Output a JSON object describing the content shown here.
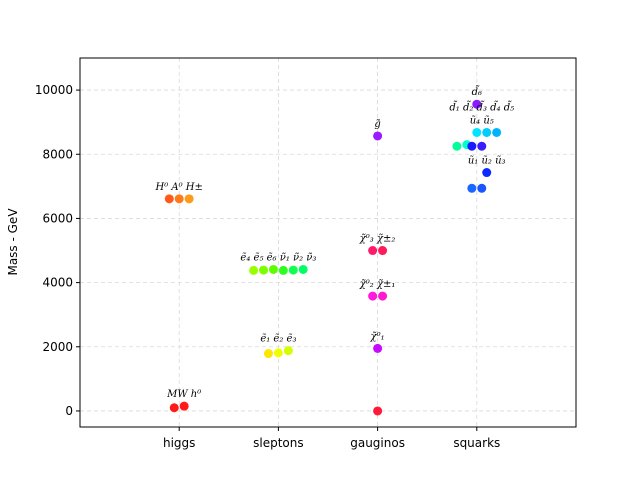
{
  "chart_data": {
    "type": "scatter",
    "ylabel": "Mass - GeV",
    "ylim": [
      -500,
      11000
    ],
    "yticks": [
      0,
      2000,
      4000,
      6000,
      8000,
      10000
    ],
    "categories": [
      "higgs",
      "sleptons",
      "gauginos",
      "squarks"
    ],
    "grid": true,
    "groups": [
      {
        "points": [
          {
            "x": -0.05,
            "y": 100,
            "color": "#ff1a1a"
          },
          {
            "x": 0.05,
            "y": 150,
            "color": "#ff1a1a"
          },
          {
            "x": -0.1,
            "y": 6610,
            "color": "#ff5a1a"
          },
          {
            "x": 0.0,
            "y": 6610,
            "color": "#ff7a1a"
          },
          {
            "x": 0.1,
            "y": 6610,
            "color": "#ff9a1a"
          }
        ],
        "labels": [
          {
            "text": "MW h⁰",
            "x": 0.05,
            "y": 150
          },
          {
            "text": "H⁰ A⁰ H±",
            "x": 0.0,
            "y": 6610
          }
        ]
      },
      {
        "points": [
          {
            "x": -0.1,
            "y": 1790,
            "color": "#ffe600"
          },
          {
            "x": 0.0,
            "y": 1810,
            "color": "#f0ff00"
          },
          {
            "x": 0.1,
            "y": 1880,
            "color": "#d4ff00"
          },
          {
            "x": -0.25,
            "y": 4380,
            "color": "#9cff00"
          },
          {
            "x": -0.15,
            "y": 4390,
            "color": "#7cff00"
          },
          {
            "x": -0.05,
            "y": 4410,
            "color": "#5cff00"
          },
          {
            "x": 0.05,
            "y": 4380,
            "color": "#2aff20"
          },
          {
            "x": 0.15,
            "y": 4390,
            "color": "#10ff50"
          },
          {
            "x": 0.25,
            "y": 4410,
            "color": "#00ff66"
          }
        ],
        "labels": [
          {
            "text": "ẽ₁ ẽ₂ ẽ₃",
            "x": 0.0,
            "y": 1880
          },
          {
            "text": "ẽ₄ ẽ₅ ẽ₆ ν̃₁ ν̃₂ ν̃₃",
            "x": 0.0,
            "y": 4410
          }
        ]
      },
      {
        "points": [
          {
            "x": 0.0,
            "y": 0,
            "color": "#ff1a3a"
          },
          {
            "x": 0.0,
            "y": 1950,
            "color": "#c80aff"
          },
          {
            "x": -0.05,
            "y": 3580,
            "color": "#ff1adc"
          },
          {
            "x": 0.05,
            "y": 3580,
            "color": "#ff1ad0"
          },
          {
            "x": -0.05,
            "y": 5000,
            "color": "#ff1a6a"
          },
          {
            "x": 0.05,
            "y": 5000,
            "color": "#ff1a5a"
          },
          {
            "x": 0.0,
            "y": 8570,
            "color": "#9b1aff"
          }
        ],
        "labels": [
          {
            "text": "χ̃⁰₁",
            "x": 0.0,
            "y": 1950
          },
          {
            "text": "χ̃⁰₂ χ̃±₁",
            "x": 0.0,
            "y": 3580
          },
          {
            "text": "χ̃⁰₃ χ̃±₂",
            "x": 0.0,
            "y": 5000
          },
          {
            "text": "g̃",
            "x": 0.0,
            "y": 8570
          }
        ]
      },
      {
        "points": [
          {
            "x": -0.05,
            "y": 6940,
            "color": "#1a66ff"
          },
          {
            "x": 0.05,
            "y": 6940,
            "color": "#1a55ff"
          },
          {
            "x": 0.1,
            "y": 7430,
            "color": "#0a2aff"
          },
          {
            "x": -0.2,
            "y": 8250,
            "color": "#00ff9a"
          },
          {
            "x": -0.1,
            "y": 8300,
            "color": "#00ffd0"
          },
          {
            "x": -0.05,
            "y": 8250,
            "color": "#1a1aff"
          },
          {
            "x": 0.05,
            "y": 8250,
            "color": "#3a1aff"
          },
          {
            "x": 0.0,
            "y": 8680,
            "color": "#00e5ff"
          },
          {
            "x": 0.1,
            "y": 8680,
            "color": "#00ccff"
          },
          {
            "x": 0.2,
            "y": 8680,
            "color": "#00b3ff"
          },
          {
            "x": 0.0,
            "y": 9560,
            "color": "#8a1aff"
          }
        ],
        "labels": [
          {
            "text": "ũ₁ ũ₂ ũ₃",
            "x": 0.1,
            "y": 7430
          },
          {
            "text": "ũ₄ ũ₅",
            "x": 0.05,
            "y": 8680
          },
          {
            "text": "d̃₁ d̃₂ d̃₃ d̃₄ d̃₅",
            "x": 0.05,
            "y": 9080
          },
          {
            "text": "d̃₆",
            "x": 0.0,
            "y": 9560
          }
        ]
      }
    ]
  }
}
